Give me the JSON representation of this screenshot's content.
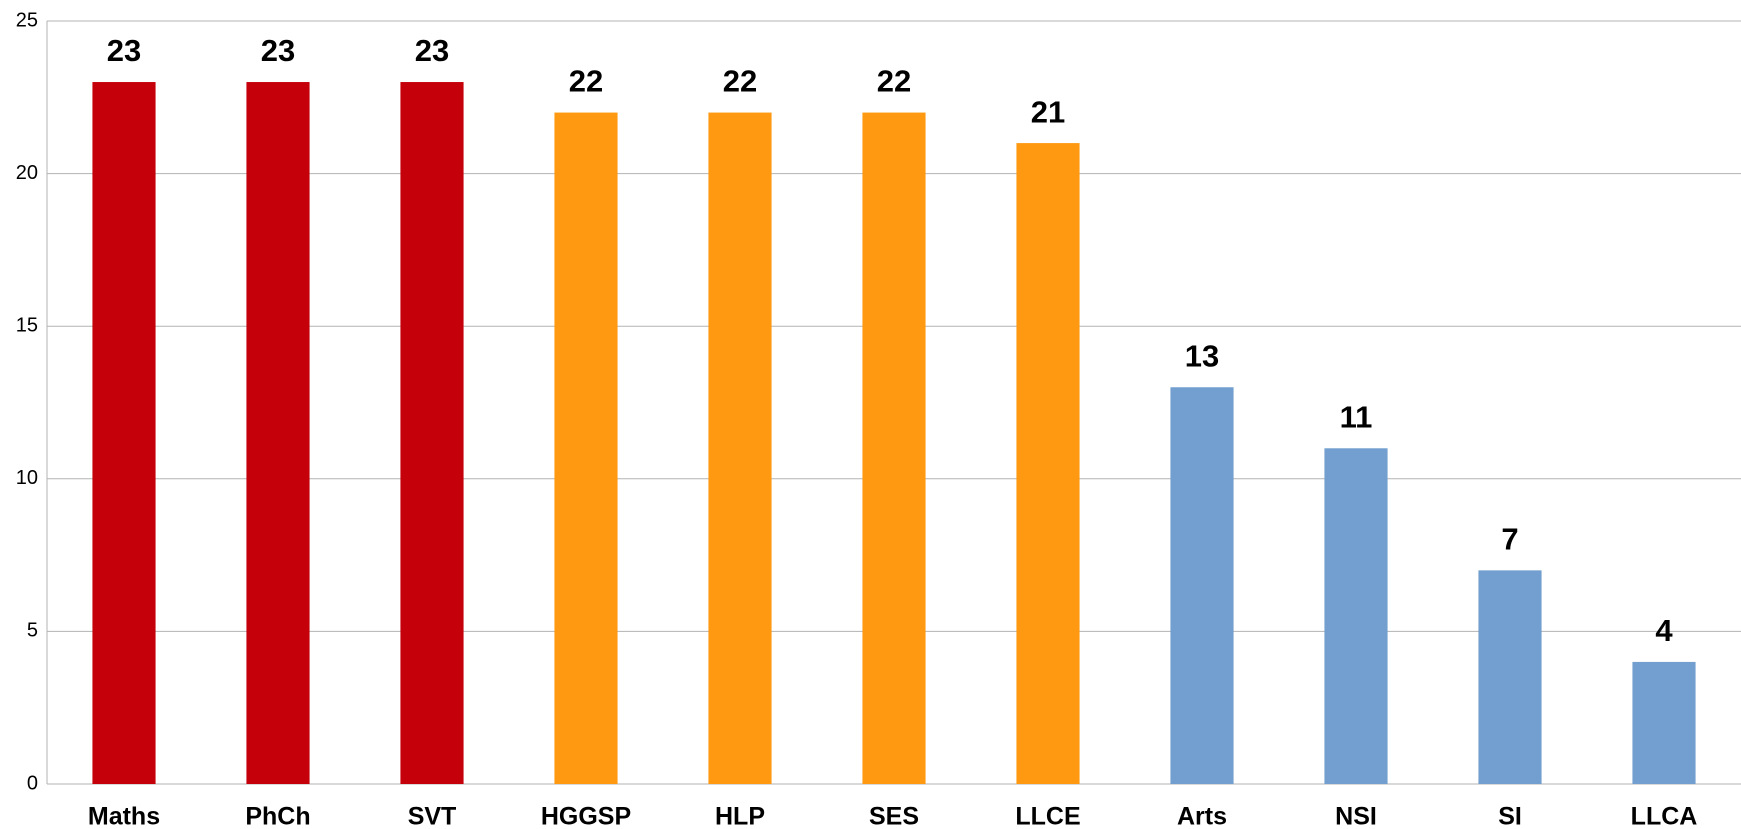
{
  "chart_data": {
    "type": "bar",
    "categories": [
      "Maths",
      "PhCh",
      "SVT",
      "HGGSP",
      "HLP",
      "SES",
      "LLCE",
      "Arts",
      "NSI",
      "SI",
      "LLCA"
    ],
    "values": [
      23,
      23,
      23,
      22,
      22,
      22,
      21,
      13,
      11,
      7,
      4
    ],
    "colors": [
      "#c5000b",
      "#c5000b",
      "#c5000b",
      "#ff9912",
      "#ff9912",
      "#ff9912",
      "#ff9912",
      "#729fcf",
      "#729fcf",
      "#729fcf",
      "#729fcf"
    ],
    "ylim": [
      0,
      25
    ],
    "yticks": [
      0,
      5,
      10,
      15,
      20,
      25
    ],
    "grid": true
  }
}
